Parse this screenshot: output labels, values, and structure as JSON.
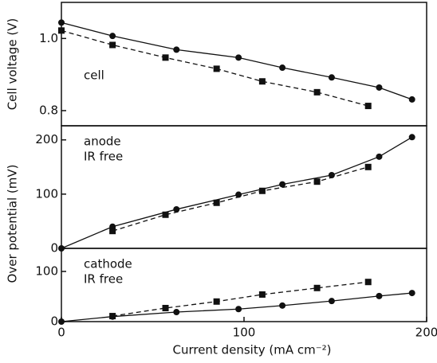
{
  "chart_data": [
    {
      "type": "line",
      "ylabel": "Cell voltage (V)",
      "annotation": [
        "cell"
      ],
      "xlim": [
        0,
        200
      ],
      "ylim": [
        0.758,
        1.1
      ],
      "yticks": [
        {
          "value": 0.8,
          "label": "0.8"
        },
        {
          "value": 1.0,
          "label": "1.0"
        }
      ],
      "series": [
        {
          "color": "#111111",
          "marker": "circle",
          "linestyle": "solid",
          "x": [
            0,
            28,
            63,
            97,
            121,
            148,
            174,
            192
          ],
          "values": [
            1.044,
            1.007,
            0.969,
            0.947,
            0.919,
            0.892,
            0.864,
            0.831
          ]
        },
        {
          "color": "#111111",
          "marker": "square",
          "linestyle": "dashed",
          "x": [
            0,
            28,
            57,
            85,
            110,
            140,
            168
          ],
          "values": [
            1.022,
            0.982,
            0.947,
            0.916,
            0.881,
            0.851,
            0.813
          ]
        }
      ]
    },
    {
      "type": "line",
      "ylabel": "Over potential (mV)",
      "annotation": [
        "anode",
        "IR free"
      ],
      "xlim": [
        0,
        200
      ],
      "ylim": [
        0,
        226
      ],
      "yticks": [
        0,
        100,
        200
      ],
      "series": [
        {
          "color": "#111111",
          "marker": "circle",
          "linestyle": "solid",
          "x": [
            0,
            28,
            63,
            97,
            121,
            148,
            174,
            192
          ],
          "values": [
            0,
            40,
            72,
            99,
            118,
            135,
            169,
            205
          ]
        },
        {
          "color": "#111111",
          "marker": "square",
          "linestyle": "dashed",
          "x": [
            28,
            57,
            85,
            110,
            140,
            168
          ],
          "values": [
            32,
            62,
            84,
            106,
            123,
            150
          ]
        }
      ]
    },
    {
      "type": "line",
      "xlabel": "Current density (mA cm⁻²)",
      "annotation": [
        "cathode",
        "IR free"
      ],
      "xlim": [
        0,
        200
      ],
      "xticks": [
        0,
        100,
        200
      ],
      "ylim": [
        0,
        146
      ],
      "yticks": [
        0,
        100
      ],
      "series": [
        {
          "color": "#111111",
          "marker": "circle",
          "linestyle": "solid",
          "x": [
            0,
            28,
            63,
            97,
            121,
            148,
            174,
            192
          ],
          "values": [
            0,
            10,
            19,
            25,
            32,
            41,
            51,
            57
          ]
        },
        {
          "color": "#111111",
          "marker": "square",
          "linestyle": "dashed",
          "x": [
            28,
            57,
            85,
            110,
            140,
            168
          ],
          "values": [
            11,
            27,
            40,
            54,
            67,
            79
          ]
        }
      ]
    }
  ]
}
